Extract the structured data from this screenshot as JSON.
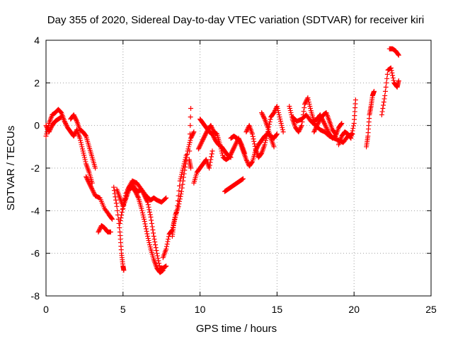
{
  "chart_data": {
    "type": "scatter",
    "title": "Day 355 of 2020, Sidereal Day-to-day VTEC variation (SDTVAR) for receiver kiri",
    "xlabel": "GPS time / hours",
    "ylabel": "SDTVAR / TECUs",
    "xlim": [
      0,
      25
    ],
    "ylim": [
      -8,
      4
    ],
    "xticks": [
      0,
      5,
      10,
      15,
      20,
      25
    ],
    "yticks": [
      -8,
      -6,
      -4,
      -2,
      0,
      2,
      4
    ],
    "grid": true,
    "legend": "none",
    "marker": "+",
    "marker_color": "#ff0000",
    "tracks": [
      {
        "name": "track-1",
        "points": [
          [
            0.0,
            -0.5
          ],
          [
            0.2,
            0.1
          ],
          [
            0.4,
            0.5
          ],
          [
            0.6,
            0.6
          ],
          [
            0.8,
            0.75
          ],
          [
            1.0,
            0.6
          ],
          [
            1.2,
            0.2
          ],
          [
            1.4,
            -0.1
          ],
          [
            1.6,
            -0.3
          ],
          [
            1.8,
            -0.5
          ],
          [
            2.0,
            -0.2
          ],
          [
            2.2,
            -0.6
          ],
          [
            2.4,
            -1.2
          ],
          [
            2.6,
            -1.8
          ],
          [
            2.8,
            -2.2
          ],
          [
            3.0,
            -2.7
          ]
        ]
      },
      {
        "name": "track-2",
        "points": [
          [
            0.0,
            0.0
          ],
          [
            0.2,
            -0.3
          ],
          [
            0.4,
            0.0
          ],
          [
            0.6,
            0.2
          ],
          [
            0.8,
            0.3
          ],
          [
            1.0,
            0.4
          ]
        ]
      },
      {
        "name": "track-3",
        "points": [
          [
            1.6,
            0.3
          ],
          [
            1.8,
            0.5
          ],
          [
            2.0,
            0.2
          ],
          [
            2.2,
            -0.2
          ],
          [
            2.4,
            -0.3
          ],
          [
            2.6,
            -0.5
          ],
          [
            2.8,
            -1.0
          ],
          [
            3.0,
            -1.5
          ],
          [
            3.2,
            -2.0
          ]
        ]
      },
      {
        "name": "track-4",
        "points": [
          [
            2.6,
            -2.4
          ],
          [
            2.8,
            -2.7
          ],
          [
            3.0,
            -3.0
          ],
          [
            3.2,
            -3.3
          ],
          [
            3.5,
            -3.4
          ],
          [
            3.8,
            -3.9
          ],
          [
            4.1,
            -4.2
          ],
          [
            4.3,
            -4.4
          ]
        ]
      },
      {
        "name": "track-5",
        "points": [
          [
            3.4,
            -5.0
          ],
          [
            3.6,
            -4.7
          ],
          [
            3.8,
            -4.8
          ],
          [
            4.0,
            -5.0
          ],
          [
            4.2,
            -5.0
          ]
        ]
      },
      {
        "name": "track-6",
        "points": [
          [
            4.4,
            -2.9
          ],
          [
            4.6,
            -3.8
          ],
          [
            4.8,
            -5.0
          ],
          [
            4.9,
            -6.0
          ],
          [
            5.0,
            -6.6
          ],
          [
            5.05,
            -6.8
          ]
        ]
      },
      {
        "name": "track-7",
        "points": [
          [
            5.0,
            -3.9
          ],
          [
            5.3,
            -3.0
          ],
          [
            5.6,
            -2.6
          ],
          [
            5.9,
            -2.7
          ],
          [
            6.2,
            -3.0
          ],
          [
            6.5,
            -3.3
          ],
          [
            6.8,
            -3.5
          ],
          [
            7.0,
            -3.4
          ],
          [
            7.2,
            -3.5
          ],
          [
            7.5,
            -3.6
          ],
          [
            7.8,
            -3.4
          ]
        ]
      },
      {
        "name": "track-8",
        "points": [
          [
            4.8,
            -4.6
          ],
          [
            5.0,
            -3.8
          ],
          [
            5.2,
            -3.2
          ],
          [
            5.4,
            -2.9
          ],
          [
            5.6,
            -2.7
          ],
          [
            5.8,
            -3.0
          ],
          [
            6.0,
            -3.1
          ],
          [
            6.2,
            -3.0
          ],
          [
            6.4,
            -3.3
          ],
          [
            6.6,
            -3.6
          ],
          [
            6.8,
            -4.3
          ],
          [
            7.0,
            -5.2
          ],
          [
            7.2,
            -6.0
          ],
          [
            7.4,
            -6.7
          ],
          [
            7.6,
            -6.7
          ],
          [
            7.8,
            -6.6
          ]
        ]
      },
      {
        "name": "track-9",
        "points": [
          [
            4.6,
            -3.0
          ],
          [
            4.8,
            -3.4
          ],
          [
            5.0,
            -3.8
          ],
          [
            5.2,
            -3.4
          ],
          [
            5.4,
            -3.0
          ],
          [
            5.6,
            -2.9
          ],
          [
            5.8,
            -3.1
          ],
          [
            6.0,
            -3.4
          ],
          [
            6.2,
            -3.9
          ],
          [
            6.4,
            -4.5
          ],
          [
            6.6,
            -5.2
          ],
          [
            6.8,
            -5.8
          ],
          [
            7.0,
            -6.3
          ],
          [
            7.2,
            -6.7
          ],
          [
            7.4,
            -6.9
          ],
          [
            7.6,
            -6.8
          ]
        ]
      },
      {
        "name": "track-10",
        "points": [
          [
            7.6,
            -6.2
          ],
          [
            7.8,
            -5.8
          ],
          [
            8.0,
            -5.1
          ],
          [
            8.2,
            -4.9
          ],
          [
            8.4,
            -4.2
          ],
          [
            8.6,
            -3.8
          ],
          [
            8.8,
            -3.1
          ],
          [
            9.0,
            -2.1
          ],
          [
            9.2,
            -1.2
          ],
          [
            9.4,
            -0.6
          ],
          [
            9.6,
            -0.3
          ]
        ]
      },
      {
        "name": "track-11",
        "points": [
          [
            8.2,
            -5.2
          ],
          [
            8.3,
            -4.6
          ],
          [
            8.5,
            -4.0
          ],
          [
            8.7,
            -2.6
          ],
          [
            8.9,
            -2.0
          ],
          [
            9.1,
            -1.4
          ]
        ]
      },
      {
        "name": "track-12",
        "points": [
          [
            9.4,
            0.8
          ],
          [
            9.3,
            -1.6
          ],
          [
            9.4,
            -2.0
          ]
        ]
      },
      {
        "name": "track-13",
        "points": [
          [
            9.6,
            -2.7
          ],
          [
            9.8,
            -2.2
          ],
          [
            10.0,
            -2.0
          ],
          [
            10.2,
            -1.8
          ],
          [
            10.4,
            -1.6
          ],
          [
            10.6,
            -2.0
          ],
          [
            10.8,
            -1.2
          ]
        ]
      },
      {
        "name": "track-14",
        "points": [
          [
            9.9,
            -1.1
          ],
          [
            10.1,
            -0.8
          ],
          [
            10.3,
            -0.5
          ],
          [
            10.5,
            -0.2
          ],
          [
            10.7,
            0.0
          ],
          [
            10.9,
            -0.3
          ],
          [
            11.1,
            -0.4
          ],
          [
            11.3,
            -0.9
          ],
          [
            11.5,
            -1.5
          ],
          [
            11.7,
            -1.6
          ],
          [
            11.9,
            -1.5
          ],
          [
            12.1,
            -1.2
          ],
          [
            12.3,
            -0.9
          ],
          [
            12.5,
            -0.6
          ],
          [
            12.7,
            -0.9
          ],
          [
            12.9,
            -1.3
          ]
        ]
      },
      {
        "name": "track-15",
        "points": [
          [
            10.0,
            0.3
          ],
          [
            10.2,
            0.1
          ],
          [
            10.4,
            -0.1
          ],
          [
            10.6,
            -0.3
          ],
          [
            10.8,
            -0.4
          ],
          [
            11.0,
            -0.7
          ],
          [
            11.2,
            -0.9
          ],
          [
            11.4,
            -1.0
          ],
          [
            11.6,
            -1.2
          ],
          [
            11.8,
            -1.4
          ],
          [
            12.0,
            -1.5
          ]
        ]
      },
      {
        "name": "track-16",
        "points": [
          [
            11.6,
            -3.1
          ],
          [
            11.8,
            -3.0
          ],
          [
            12.0,
            -2.9
          ],
          [
            12.2,
            -2.8
          ],
          [
            12.4,
            -2.7
          ],
          [
            12.6,
            -2.6
          ],
          [
            12.8,
            -2.5
          ]
        ]
      },
      {
        "name": "track-17",
        "points": [
          [
            12.0,
            -0.6
          ],
          [
            12.2,
            -0.5
          ],
          [
            12.4,
            -0.6
          ],
          [
            12.6,
            -0.8
          ],
          [
            12.8,
            -1.2
          ],
          [
            13.0,
            -1.6
          ],
          [
            13.2,
            -1.9
          ],
          [
            13.4,
            -1.7
          ],
          [
            13.6,
            -1.2
          ],
          [
            13.8,
            -0.9
          ],
          [
            14.0,
            -0.7
          ],
          [
            14.2,
            -0.5
          ],
          [
            14.4,
            -0.4
          ],
          [
            14.6,
            -0.5
          ],
          [
            14.8,
            -0.6
          ],
          [
            15.0,
            -0.4
          ]
        ]
      },
      {
        "name": "track-18",
        "points": [
          [
            13.0,
            -0.3
          ],
          [
            13.2,
            0.0
          ],
          [
            13.4,
            -0.4
          ],
          [
            13.6,
            -1.1
          ],
          [
            13.8,
            -1.5
          ],
          [
            14.0,
            -1.3
          ],
          [
            14.2,
            -0.9
          ],
          [
            14.4,
            -0.3
          ],
          [
            14.6,
            0.4
          ],
          [
            14.8,
            0.6
          ],
          [
            15.0,
            0.9
          ],
          [
            15.2,
            0.3
          ],
          [
            15.4,
            -0.3
          ]
        ]
      },
      {
        "name": "track-19",
        "points": [
          [
            14.0,
            0.6
          ],
          [
            14.2,
            0.3
          ],
          [
            14.4,
            -0.1
          ],
          [
            14.6,
            -0.6
          ],
          [
            14.8,
            -1.0
          ]
        ]
      },
      {
        "name": "track-20",
        "points": [
          [
            15.8,
            0.9
          ],
          [
            16.0,
            0.3
          ],
          [
            16.2,
            -0.1
          ],
          [
            16.4,
            -0.3
          ],
          [
            16.6,
            0.0
          ],
          [
            16.8,
            1.0
          ],
          [
            17.0,
            1.3
          ],
          [
            17.2,
            0.7
          ],
          [
            17.4,
            0.2
          ],
          [
            17.6,
            0.3
          ],
          [
            17.8,
            0.5
          ],
          [
            18.0,
            0.2
          ],
          [
            18.2,
            -0.1
          ],
          [
            18.4,
            -0.4
          ],
          [
            18.6,
            -0.6
          ],
          [
            18.8,
            -0.5
          ],
          [
            19.0,
            -0.1
          ],
          [
            19.2,
            0.1
          ]
        ]
      },
      {
        "name": "track-21",
        "points": [
          [
            16.0,
            0.4
          ],
          [
            16.3,
            0.2
          ],
          [
            16.6,
            0.3
          ],
          [
            16.9,
            0.5
          ],
          [
            17.2,
            0.2
          ],
          [
            17.5,
            0.0
          ],
          [
            17.8,
            -0.2
          ],
          [
            18.1,
            -0.3
          ],
          [
            18.4,
            -0.5
          ],
          [
            18.7,
            -0.6
          ],
          [
            19.0,
            -0.7
          ],
          [
            19.3,
            -0.8
          ],
          [
            19.6,
            -0.5
          ],
          [
            19.9,
            -0.4
          ]
        ]
      },
      {
        "name": "track-22",
        "points": [
          [
            17.4,
            -0.3
          ],
          [
            17.6,
            0.0
          ],
          [
            17.8,
            0.3
          ],
          [
            18.0,
            0.5
          ],
          [
            18.2,
            0.6
          ],
          [
            18.4,
            0.2
          ],
          [
            18.6,
            -0.2
          ],
          [
            18.8,
            -0.4
          ]
        ]
      },
      {
        "name": "track-23",
        "points": [
          [
            19.0,
            -0.9
          ],
          [
            19.2,
            -0.5
          ],
          [
            19.4,
            -0.3
          ],
          [
            19.6,
            -0.4
          ],
          [
            19.8,
            -0.6
          ],
          [
            20.0,
            0.1
          ],
          [
            20.1,
            1.2
          ]
        ]
      },
      {
        "name": "track-24",
        "points": [
          [
            20.8,
            -1.0
          ],
          [
            20.9,
            -0.5
          ],
          [
            21.0,
            0.5
          ],
          [
            21.1,
            0.9
          ],
          [
            21.2,
            1.4
          ],
          [
            21.3,
            1.6
          ]
        ]
      },
      {
        "name": "track-25",
        "points": [
          [
            21.8,
            0.5
          ],
          [
            22.0,
            1.4
          ],
          [
            22.2,
            2.6
          ],
          [
            22.4,
            2.7
          ],
          [
            22.6,
            2.0
          ],
          [
            22.8,
            1.8
          ],
          [
            22.9,
            2.1
          ]
        ]
      },
      {
        "name": "track-26",
        "points": [
          [
            22.3,
            3.6
          ],
          [
            22.5,
            3.6
          ],
          [
            22.7,
            3.5
          ],
          [
            22.9,
            3.3
          ]
        ]
      }
    ]
  }
}
